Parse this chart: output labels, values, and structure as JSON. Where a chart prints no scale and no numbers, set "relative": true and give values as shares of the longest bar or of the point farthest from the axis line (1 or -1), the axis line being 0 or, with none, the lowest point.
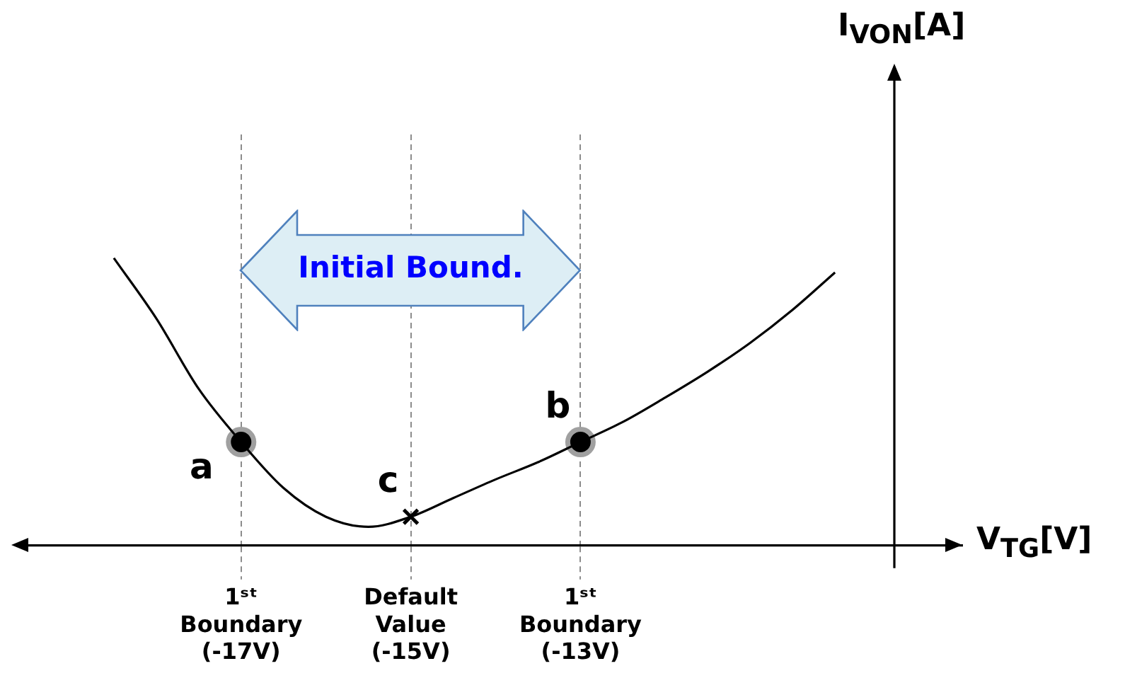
{
  "chart_data": {
    "type": "line",
    "relative": true,
    "xlabel": "V$_{TG}$[V]",
    "categories": [
      null,
      null,
      null,
      null,
      null,
      "1ˢᵗ\nBoundary\n(-17V)",
      null,
      null,
      null,
      "Default\nValue\n(-15V)",
      null,
      null,
      null,
      "1ˢᵗ\nBoundary\n(-13V)",
      null,
      null,
      null,
      null,
      null,
      null,
      null,
      null,
      null
    ],
    "tick_labels": "x",
    "grid": "x",
    "legend": false,
    "series": [
      {
        "color": "#000000",
        "marker": "none",
        "values": [
          null,
          null,
          1.0,
          0.79,
          0.545,
          0.36,
          0.2,
          0.1,
          0.065,
          0.1,
          0.165,
          0.23,
          0.29,
          0.36,
          0.43,
          0.515,
          0.605,
          0.705,
          0.82,
          0.95,
          null,
          null,
          null
        ]
      },
      {
        "type": "scatter",
        "color": "#000000",
        "marker": "circle",
        "values": [
          null,
          null,
          null,
          null,
          null,
          0.36,
          null,
          null,
          null,
          null,
          null,
          null,
          null,
          0.36,
          null,
          null,
          null,
          null,
          null,
          null,
          null,
          null,
          null
        ]
      },
      {
        "type": "scatter",
        "color": "#000000",
        "marker": "cross",
        "values": [
          null,
          null,
          null,
          null,
          null,
          null,
          null,
          null,
          null,
          0.1,
          null,
          null,
          null,
          null,
          null,
          null,
          null,
          null,
          null,
          null,
          null,
          null,
          null
        ]
      }
    ],
    "annotations": [
      "Initial Bound.",
      "I$_{VON}$[A]",
      {
        "text": "a",
        "x": "1ˢᵗ\nBoundary\n(-17V)",
        "y": 0.36
      },
      {
        "text": "b",
        "x": "1ˢᵗ\nBoundary\n(-13V)",
        "y": 0.36
      },
      {
        "text": "c",
        "x": "Default\nValue\n(-15V)",
        "y": 0.1
      }
    ]
  }
}
